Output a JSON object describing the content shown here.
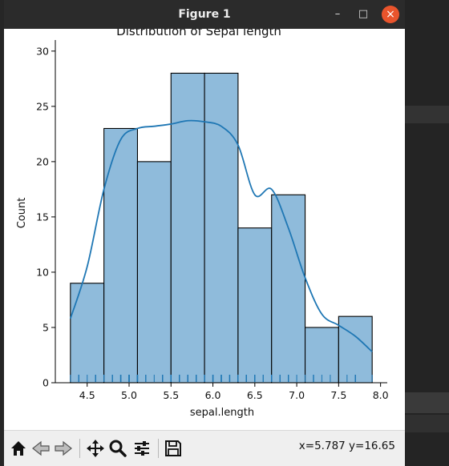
{
  "window": {
    "title": "Figure 1",
    "minimize_glyph": "–",
    "maximize_glyph": "□",
    "close_glyph": "×"
  },
  "status": {
    "coords": "x=5.787 y=16.65"
  },
  "toolbar": {
    "icons": [
      "home-icon",
      "back-icon",
      "forward-icon",
      "pan-icon",
      "zoom-icon",
      "configure-subplots-icon",
      "save-icon"
    ]
  },
  "colors": {
    "bar_fill": "#8fbbdb",
    "bar_edge": "#000000",
    "kde_line": "#1f77b4",
    "rug": "#1f77b4",
    "close_button": "#e9542c"
  },
  "chart_data": {
    "type": "bar",
    "title": "Distribution of Sepal length",
    "xlabel": "sepal.length",
    "ylabel": "Count",
    "bin_edges": [
      4.3,
      4.7,
      5.1,
      5.5,
      5.9,
      6.3,
      6.7,
      7.1,
      7.5,
      7.9
    ],
    "values": [
      9,
      23,
      20,
      28,
      28,
      14,
      17,
      5,
      6
    ],
    "xlim": [
      4.12,
      8.08
    ],
    "ylim": [
      0,
      31
    ],
    "xticks": [
      4.5,
      5.0,
      5.5,
      6.0,
      6.5,
      7.0,
      7.5,
      8.0
    ],
    "xtick_labels": [
      "4.5",
      "5.0",
      "5.5",
      "6.0",
      "6.5",
      "7.0",
      "7.5",
      "8.0"
    ],
    "yticks": [
      0,
      5,
      10,
      15,
      20,
      25,
      30
    ],
    "ytick_labels": [
      "0",
      "5",
      "10",
      "15",
      "20",
      "25",
      "30"
    ],
    "kde": {
      "x": [
        4.3,
        4.5,
        4.7,
        4.9,
        5.1,
        5.3,
        5.5,
        5.7,
        5.9,
        6.1,
        6.3,
        6.5,
        6.7,
        6.9,
        7.1,
        7.3,
        7.5,
        7.7,
        7.9
      ],
      "y": [
        5.8,
        10.5,
        17.5,
        22.0,
        23.0,
        23.2,
        23.4,
        23.7,
        23.6,
        23.2,
        21.5,
        17.0,
        17.5,
        14.0,
        9.5,
        6.2,
        5.2,
        4.2,
        2.8
      ]
    },
    "rug": [
      4.3,
      4.4,
      4.4,
      4.4,
      4.5,
      4.6,
      4.6,
      4.6,
      4.6,
      4.7,
      4.7,
      4.8,
      4.8,
      4.8,
      4.8,
      4.8,
      4.9,
      4.9,
      4.9,
      4.9,
      4.9,
      4.9,
      5.0,
      5.0,
      5.0,
      5.0,
      5.0,
      5.0,
      5.0,
      5.0,
      5.0,
      5.0,
      5.1,
      5.1,
      5.1,
      5.1,
      5.1,
      5.1,
      5.1,
      5.1,
      5.1,
      5.2,
      5.2,
      5.2,
      5.2,
      5.3,
      5.4,
      5.4,
      5.4,
      5.4,
      5.4,
      5.4,
      5.5,
      5.5,
      5.5,
      5.5,
      5.5,
      5.5,
      5.5,
      5.6,
      5.6,
      5.6,
      5.6,
      5.6,
      5.6,
      5.7,
      5.7,
      5.7,
      5.7,
      5.7,
      5.7,
      5.7,
      5.7,
      5.8,
      5.8,
      5.8,
      5.8,
      5.8,
      5.8,
      5.8,
      5.9,
      5.9,
      5.9,
      6.0,
      6.0,
      6.0,
      6.0,
      6.0,
      6.0,
      6.1,
      6.1,
      6.1,
      6.1,
      6.1,
      6.1,
      6.2,
      6.2,
      6.2,
      6.2,
      6.3,
      6.3,
      6.3,
      6.3,
      6.3,
      6.3,
      6.3,
      6.3,
      6.3,
      6.4,
      6.4,
      6.4,
      6.4,
      6.4,
      6.4,
      6.4,
      6.5,
      6.5,
      6.5,
      6.5,
      6.5,
      6.6,
      6.6,
      6.7,
      6.7,
      6.7,
      6.7,
      6.7,
      6.7,
      6.7,
      6.7,
      6.8,
      6.8,
      6.8,
      6.9,
      6.9,
      6.9,
      6.9,
      7.0,
      7.1,
      7.2,
      7.2,
      7.2,
      7.3,
      7.4,
      7.6,
      7.7,
      7.7,
      7.7,
      7.7,
      7.9
    ],
    "legend": "none",
    "grid": false
  }
}
